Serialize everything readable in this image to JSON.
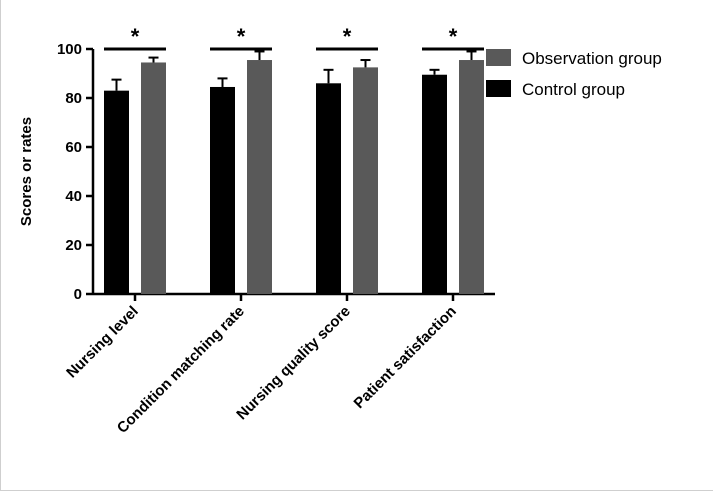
{
  "chart_data": {
    "type": "bar",
    "title": "",
    "xlabel": "",
    "ylabel": "Scores or rates",
    "ylim": [
      0,
      100
    ],
    "yticks": [
      0,
      20,
      40,
      60,
      80,
      100
    ],
    "categories": [
      "Nursing level",
      "Condition matching rate",
      "Nursing quality score",
      "Patient satisfaction"
    ],
    "series": [
      {
        "name": "Control group",
        "values": [
          83,
          84.5,
          86,
          89.5
        ],
        "errors": [
          4.5,
          3.5,
          5.5,
          2
        ],
        "color": "#000000"
      },
      {
        "name": "Observation group",
        "values": [
          94.5,
          95.5,
          92.5,
          95.5
        ],
        "errors": [
          2,
          3.5,
          3,
          3.5
        ],
        "color": "#595959"
      }
    ],
    "significance_marker": "*",
    "legend": {
      "position": "top-right",
      "order": [
        "Observation group",
        "Control group"
      ]
    }
  }
}
